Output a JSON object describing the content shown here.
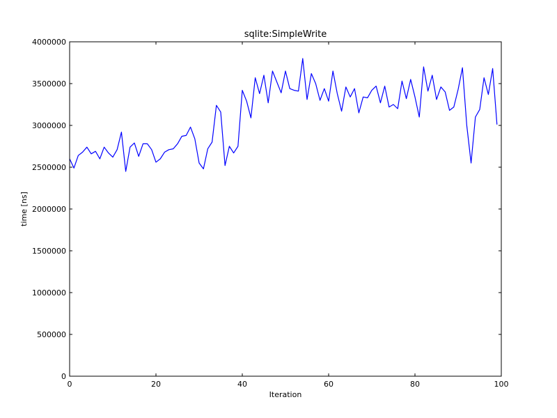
{
  "chart_data": {
    "type": "line",
    "title": "sqlite:SimpleWrite",
    "xlabel": "Iteration",
    "ylabel": "time [ns]",
    "xlim": [
      0,
      100
    ],
    "ylim": [
      0,
      4000000
    ],
    "xticks": [
      0,
      20,
      40,
      60,
      80,
      100
    ],
    "yticks": [
      0,
      500000,
      1000000,
      1500000,
      2000000,
      2500000,
      3000000,
      3500000,
      4000000
    ],
    "grid": false,
    "legend": "none",
    "series": [
      {
        "color": "#0000ff",
        "x": [
          0,
          1,
          2,
          3,
          4,
          5,
          6,
          7,
          8,
          9,
          10,
          11,
          12,
          13,
          14,
          15,
          16,
          17,
          18,
          19,
          20,
          21,
          22,
          23,
          24,
          25,
          26,
          27,
          28,
          29,
          30,
          31,
          32,
          33,
          34,
          35,
          36,
          37,
          38,
          39,
          40,
          41,
          42,
          43,
          44,
          45,
          46,
          47,
          48,
          49,
          50,
          51,
          52,
          53,
          54,
          55,
          56,
          57,
          58,
          59,
          60,
          61,
          62,
          63,
          64,
          65,
          66,
          67,
          68,
          69,
          70,
          71,
          72,
          73,
          74,
          75,
          76,
          77,
          78,
          79,
          80,
          81,
          82,
          83,
          84,
          85,
          86,
          87,
          88,
          89,
          90,
          91,
          92,
          93,
          94,
          95,
          96,
          97,
          98,
          99
        ],
        "values": [
          2600000,
          2490000,
          2640000,
          2680000,
          2740000,
          2660000,
          2690000,
          2600000,
          2740000,
          2670000,
          2620000,
          2710000,
          2920000,
          2450000,
          2740000,
          2790000,
          2630000,
          2780000,
          2780000,
          2710000,
          2560000,
          2600000,
          2680000,
          2710000,
          2720000,
          2780000,
          2870000,
          2880000,
          2980000,
          2840000,
          2550000,
          2480000,
          2720000,
          2800000,
          3240000,
          3160000,
          2520000,
          2750000,
          2670000,
          2750000,
          3420000,
          3290000,
          3090000,
          3570000,
          3380000,
          3600000,
          3270000,
          3650000,
          3520000,
          3390000,
          3650000,
          3440000,
          3420000,
          3410000,
          3800000,
          3310000,
          3620000,
          3500000,
          3300000,
          3440000,
          3290000,
          3650000,
          3380000,
          3170000,
          3460000,
          3340000,
          3440000,
          3150000,
          3340000,
          3330000,
          3420000,
          3470000,
          3270000,
          3470000,
          3220000,
          3250000,
          3200000,
          3530000,
          3320000,
          3550000,
          3340000,
          3100000,
          3700000,
          3410000,
          3600000,
          3310000,
          3460000,
          3400000,
          3180000,
          3220000,
          3430000,
          3690000,
          3000000,
          2550000,
          3100000,
          3190000,
          3570000,
          3370000,
          3680000,
          3010000
        ]
      }
    ]
  }
}
